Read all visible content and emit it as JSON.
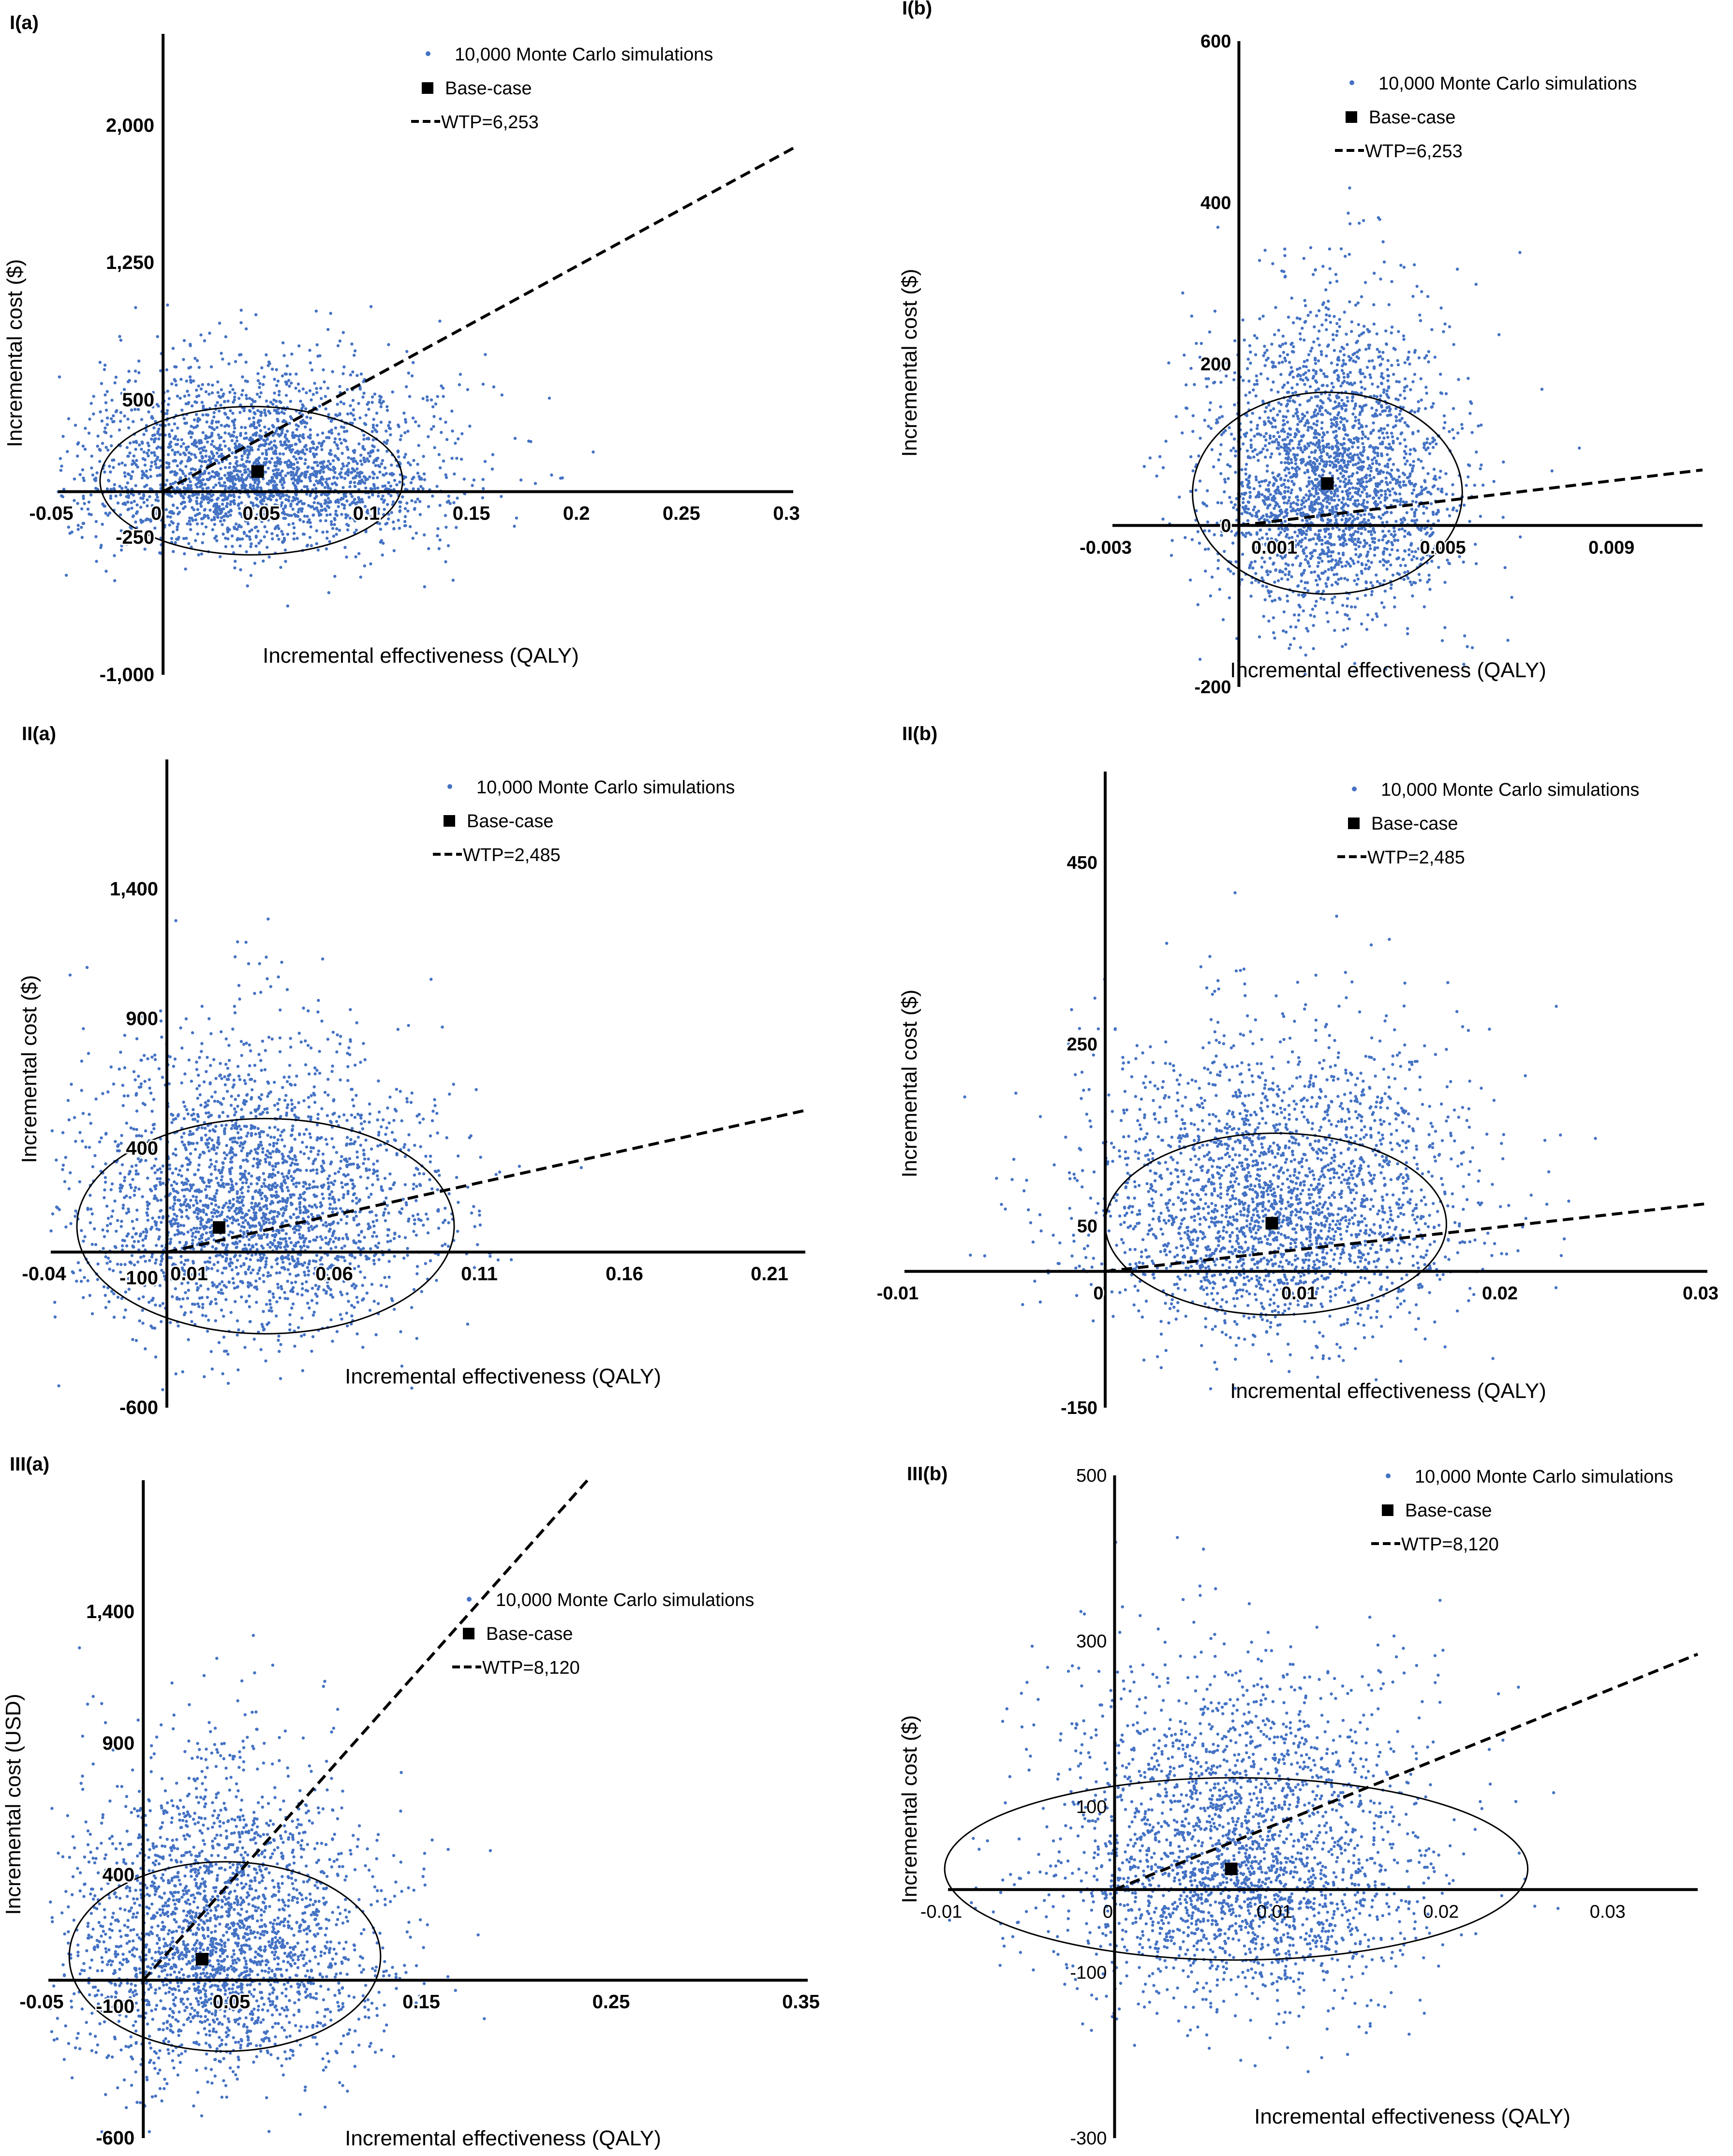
{
  "figure": {
    "point_color": "#4472C4",
    "base_color": "#000000",
    "point_count_drawn_per_panel": 2600
  },
  "chart_data": [
    {
      "type": "scatter",
      "panel": "I(a)",
      "xlabel": "Incremental effectiveness (QALY)",
      "ylabel": "Incremental cost ($)",
      "xlim": [
        -0.05,
        0.3
      ],
      "ylim": [
        -1000,
        2500
      ],
      "x_ticks": [
        -0.05,
        0,
        0.05,
        0.1,
        0.15,
        0.2,
        0.25,
        0.3
      ],
      "x_tick_labels": [
        "-0.05",
        "0",
        "0.05",
        "0.1",
        "0.15",
        "0.2",
        "0.25",
        "0.3"
      ],
      "y_ticks": [
        -1000,
        -250,
        500,
        1250,
        2000
      ],
      "y_tick_labels": [
        "-1,000",
        "-250",
        "500",
        "1,250",
        "2,000"
      ],
      "legend": [
        "10,000 Monte Carlo simulations",
        "Base-case",
        "WTP=6,253"
      ],
      "legend_position": "top-right",
      "series": [
        {
          "name": "10,000 Monte Carlo simulations",
          "n": 10000,
          "mean": [
            0.045,
            110
          ],
          "sd": [
            0.045,
            210
          ],
          "y_skew": 0.9
        },
        {
          "name": "Base-case",
          "x": [
            0.045
          ],
          "y": [
            110
          ]
        }
      ],
      "wtp": 6253,
      "ellipse": {
        "center": [
          0.042,
          60
        ],
        "semi_axes": [
          0.072,
          405
        ]
      },
      "tick_labels_bold": true
    },
    {
      "type": "scatter",
      "panel": "I(b)",
      "xlabel": "Incremental effectiveness (QALY)",
      "ylabel": "Incremental cost ($)",
      "xlim": [
        -0.003,
        0.011
      ],
      "ylim": [
        -200,
        600
      ],
      "x_ticks": [
        -0.003,
        0.001,
        0.005,
        0.009
      ],
      "x_tick_labels": [
        "-0.003",
        "0.001",
        "0.005",
        "0.009"
      ],
      "y_ticks": [
        -200,
        0,
        200,
        400,
        600
      ],
      "y_tick_labels": [
        "-200",
        "0",
        "200",
        "400",
        "600"
      ],
      "legend": [
        "10,000 Monte Carlo simulations",
        "Base-case",
        "WTP=6,253"
      ],
      "legend_position": "top-right",
      "series": [
        {
          "name": "10,000 Monte Carlo simulations",
          "n": 10000,
          "mean": [
            0.0022,
            55
          ],
          "sd": [
            0.0014,
            80
          ],
          "y_skew": 0.8
        },
        {
          "name": "Base-case",
          "x": [
            0.0021
          ],
          "y": [
            52
          ]
        }
      ],
      "wtp": 6253,
      "ellipse": {
        "center": [
          0.0021,
          40
        ],
        "semi_axes": [
          0.0032,
          125
        ]
      },
      "tick_labels_bold": true
    },
    {
      "type": "scatter",
      "panel": "II(a)",
      "xlabel": "Incremental effectiveness (QALY)",
      "ylabel": "Incremental cost ($)",
      "xlim": [
        -0.04,
        0.22
      ],
      "ylim": [
        -600,
        1900
      ],
      "x_ticks": [
        -0.04,
        0.01,
        0.06,
        0.11,
        0.16,
        0.21
      ],
      "x_tick_labels": [
        "-0.04",
        "0.01",
        "0.06",
        "0.11",
        "0.16",
        "0.21"
      ],
      "y_ticks": [
        -600,
        -100,
        400,
        900,
        1400
      ],
      "y_tick_labels": [
        "-600",
        "-100",
        "400",
        "900",
        "1,400"
      ],
      "legend": [
        "10,000 Monte Carlo simulations",
        "Base-case",
        "WTP=2,485"
      ],
      "legend_position": "top-right",
      "series": [
        {
          "name": "10,000 Monte Carlo simulations",
          "n": 10000,
          "mean": [
            0.03,
            170
          ],
          "sd": [
            0.03,
            230
          ],
          "y_skew": 0.9
        },
        {
          "name": "Base-case",
          "x": [
            0.018
          ],
          "y": [
            95
          ]
        }
      ],
      "wtp": 2485,
      "ellipse": {
        "center": [
          0.034,
          100
        ],
        "semi_axes": [
          0.065,
          415
        ]
      },
      "tick_labels_bold": true
    },
    {
      "type": "scatter",
      "panel": "II(b)",
      "xlabel": "Incremental effectiveness (QALY)",
      "ylabel": "Incremental cost ($)",
      "xlim": [
        -0.01,
        0.03
      ],
      "ylim": [
        -150,
        550
      ],
      "x_ticks": [
        -0.01,
        0,
        0.01,
        0.02,
        0.03
      ],
      "x_tick_labels": [
        "-0.01",
        "0",
        "0.01",
        "0.02",
        "0.03"
      ],
      "y_ticks": [
        -150,
        50,
        250,
        450
      ],
      "y_tick_labels": [
        "-150",
        "50",
        "250",
        "450"
      ],
      "legend": [
        "10,000 Monte Carlo simulations",
        "Base-case",
        "WTP=2,485"
      ],
      "legend_position": "top-right",
      "series": [
        {
          "name": "10,000 Monte Carlo simulations",
          "n": 10000,
          "mean": [
            0.0085,
            75
          ],
          "sd": [
            0.0045,
            70
          ],
          "y_skew": 0.8
        },
        {
          "name": "Base-case",
          "x": [
            0.0083
          ],
          "y": [
            53
          ]
        }
      ],
      "wtp": 2485,
      "ellipse": {
        "center": [
          0.0085,
          52
        ],
        "semi_axes": [
          0.0085,
          100
        ]
      },
      "tick_labels_bold": true
    },
    {
      "type": "scatter",
      "panel": "III(a)",
      "xlabel": "Incremental effectiveness (QALY)",
      "ylabel": "Incremental cost (USD)",
      "xlim": [
        -0.05,
        0.35
      ],
      "ylim": [
        -600,
        1900
      ],
      "x_ticks": [
        -0.05,
        0.05,
        0.15,
        0.25,
        0.35
      ],
      "x_tick_labels": [
        "-0.05",
        "0.05",
        "0.15",
        "0.25",
        "0.35"
      ],
      "y_ticks": [
        -600,
        -100,
        400,
        900,
        1400
      ],
      "y_tick_labels": [
        "-600",
        "-100",
        "400",
        "900",
        "1,400"
      ],
      "legend": [
        "10,000 Monte Carlo simulations",
        "Base-case",
        "WTP=8,120"
      ],
      "legend_position": "right",
      "series": [
        {
          "name": "10,000 Monte Carlo simulations",
          "n": 10000,
          "mean": [
            0.04,
            150
          ],
          "sd": [
            0.04,
            250
          ],
          "y_skew": 0.9
        },
        {
          "name": "Base-case",
          "x": [
            0.031
          ],
          "y": [
            80
          ]
        }
      ],
      "wtp": 8120,
      "ellipse": {
        "center": [
          0.043,
          90
        ],
        "semi_axes": [
          0.082,
          360
        ]
      },
      "tick_labels_bold": true
    },
    {
      "type": "scatter",
      "panel": "III(b)",
      "xlabel": "Incremental effectiveness (QALY)",
      "ylabel": "Incremental cost ($)",
      "xlim": [
        -0.01,
        0.035
      ],
      "ylim": [
        -300,
        500
      ],
      "x_ticks": [
        -0.01,
        0,
        0.01,
        0.02,
        0.03
      ],
      "x_tick_labels": [
        "-0.01",
        "0",
        "0.01",
        "0.02",
        "0.03"
      ],
      "y_ticks": [
        -300,
        -100,
        100,
        300,
        500
      ],
      "y_tick_labels": [
        "-300",
        "-100",
        "100",
        "300",
        "500"
      ],
      "legend": [
        "10,000 Monte Carlo simulations",
        "Base-case",
        "WTP=8,120"
      ],
      "legend_position": "top-right",
      "series": [
        {
          "name": "10,000 Monte Carlo simulations",
          "n": 10000,
          "mean": [
            0.0075,
            35
          ],
          "sd": [
            0.0055,
            85
          ],
          "y_skew": 0.8
        },
        {
          "name": "Base-case",
          "x": [
            0.007
          ],
          "y": [
            25
          ]
        }
      ],
      "wtp": 8120,
      "ellipse": {
        "center": [
          0.0073,
          25
        ],
        "semi_axes": [
          0.0175,
          110
        ]
      },
      "tick_labels_bold": false
    }
  ]
}
